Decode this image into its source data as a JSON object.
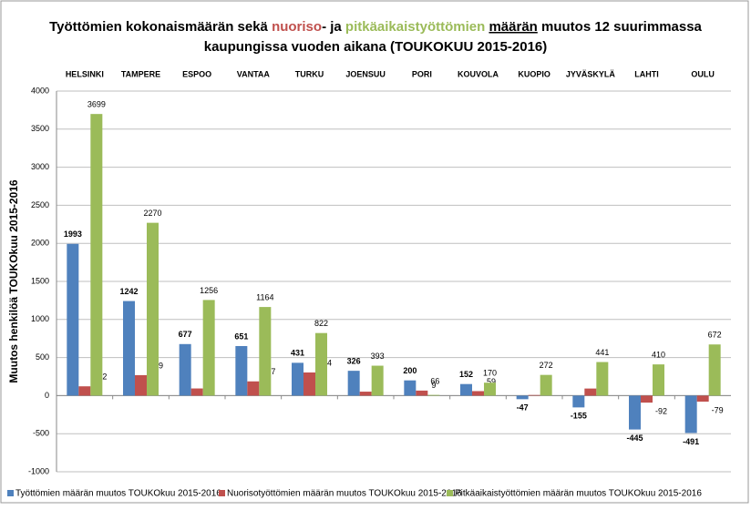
{
  "chart_data": {
    "type": "bar",
    "title_lines": [
      [
        {
          "text": "Työttömien kokonaismäärän sekä "
        },
        {
          "text": "nuoriso",
          "color": "#c0504d"
        },
        {
          "text": "- ja "
        },
        {
          "text": "pitkäaikaistyöttömien ",
          "color": "#9bbb59"
        },
        {
          "text": "määrän",
          "underline": true
        },
        {
          "text": " muutos 12 suurimmassa"
        }
      ],
      [
        {
          "text": "kaupungissa vuoden aikana (TOUKOKUU 2015-2016)"
        }
      ]
    ],
    "ylabel": "Muutos henkilöä TOUKOkuu 2015-2016",
    "categories": [
      "HELSINKI",
      "TAMPERE",
      "ESPOO",
      "VANTAA",
      "TURKU",
      "JOENSUU",
      "PORI",
      "KOUVOLA",
      "KUOPIO",
      "JYVÄSKYLÄ",
      "LAHTI",
      "OULU"
    ],
    "series": [
      {
        "name": "Työttömien määrän muutos TOUKOkuu 2015-2016",
        "color": "#4f81bd",
        "values": [
          1993,
          1242,
          677,
          651,
          431,
          326,
          200,
          152,
          -47,
          -155,
          -445,
          -491
        ]
      },
      {
        "name": "Nuorisotyöttömien määrän muutos TOUKOkuu 2015-2016",
        "color": "#c0504d",
        "values": [
          122,
          269,
          94,
          187,
          304,
          52,
          66,
          59,
          8,
          93,
          -92,
          -79
        ]
      },
      {
        "name": "Pitkäaikaistyöttömien määrän muutos TOUKOkuu 2015-2016",
        "color": "#9bbb59",
        "values": [
          3699,
          2270,
          1256,
          1164,
          822,
          393,
          9,
          170,
          272,
          441,
          410,
          672
        ]
      }
    ],
    "ylim": [
      -1000,
      4000
    ],
    "yticks": [
      -1000,
      -500,
      0,
      500,
      1000,
      1500,
      2000,
      2500,
      3000,
      3500,
      4000
    ],
    "grid": true,
    "legend": "bottom"
  }
}
